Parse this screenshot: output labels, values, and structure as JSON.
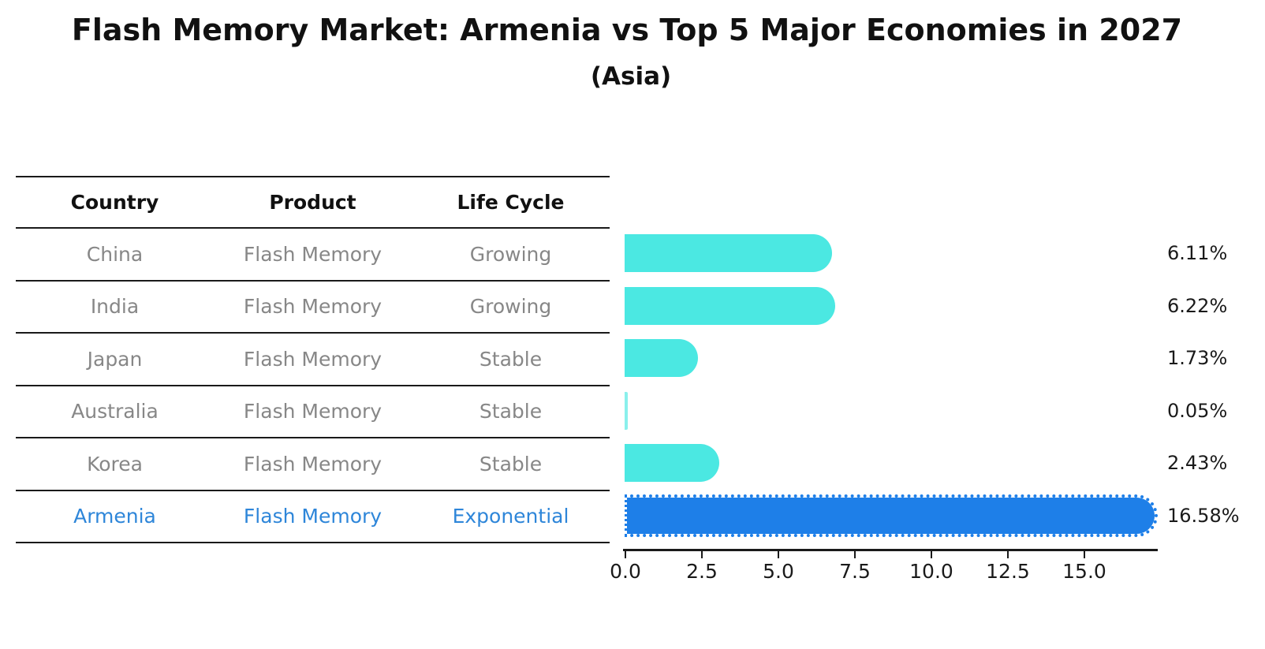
{
  "title": "Flash Memory Market: Armenia vs Top 5 Major Economies in 2027",
  "subtitle": "(Asia)",
  "table": {
    "headers": [
      "Country",
      "Product",
      "Life Cycle"
    ],
    "rows": [
      {
        "country": "China",
        "product": "Flash Memory",
        "life_cycle": "Growing",
        "highlight": false
      },
      {
        "country": "India",
        "product": "Flash Memory",
        "life_cycle": "Growing",
        "highlight": false
      },
      {
        "country": "Japan",
        "product": "Flash Memory",
        "life_cycle": "Stable",
        "highlight": false
      },
      {
        "country": "Australia",
        "product": "Flash Memory",
        "life_cycle": "Stable",
        "highlight": false
      },
      {
        "country": "Korea",
        "product": "Flash Memory",
        "life_cycle": "Stable",
        "highlight": false
      },
      {
        "country": "Armenia",
        "product": "Flash Memory",
        "life_cycle": "Exponential",
        "highlight": true
      }
    ]
  },
  "chart_data": {
    "type": "bar",
    "orientation": "horizontal",
    "title": "Flash Memory Market: Armenia vs Top 5 Major Economies in 2027",
    "subtitle": "(Asia)",
    "categories": [
      "China",
      "India",
      "Japan",
      "Australia",
      "Korea",
      "Armenia"
    ],
    "values": [
      6.11,
      6.22,
      1.73,
      0.05,
      2.43,
      16.58
    ],
    "value_labels": [
      "6.11%",
      "6.22%",
      "1.73%",
      "0.05%",
      "2.43%",
      "16.58%"
    ],
    "highlight_category": "Armenia",
    "x_ticks": [
      0.0,
      2.5,
      5.0,
      7.5,
      10.0,
      12.5,
      15.0
    ],
    "x_tick_labels": [
      "0.0",
      "2.5",
      "5.0",
      "7.5",
      "10.0",
      "12.5",
      "15.0"
    ],
    "xlim": [
      0,
      17.4
    ],
    "grid": false,
    "legend": false,
    "colors": {
      "default_bar": "#4BE8E2",
      "highlight_bar": "#1E7FE8",
      "highlight_text": "#2E86D9",
      "row_text": "#878787",
      "axis": "#1a1a1a"
    }
  }
}
